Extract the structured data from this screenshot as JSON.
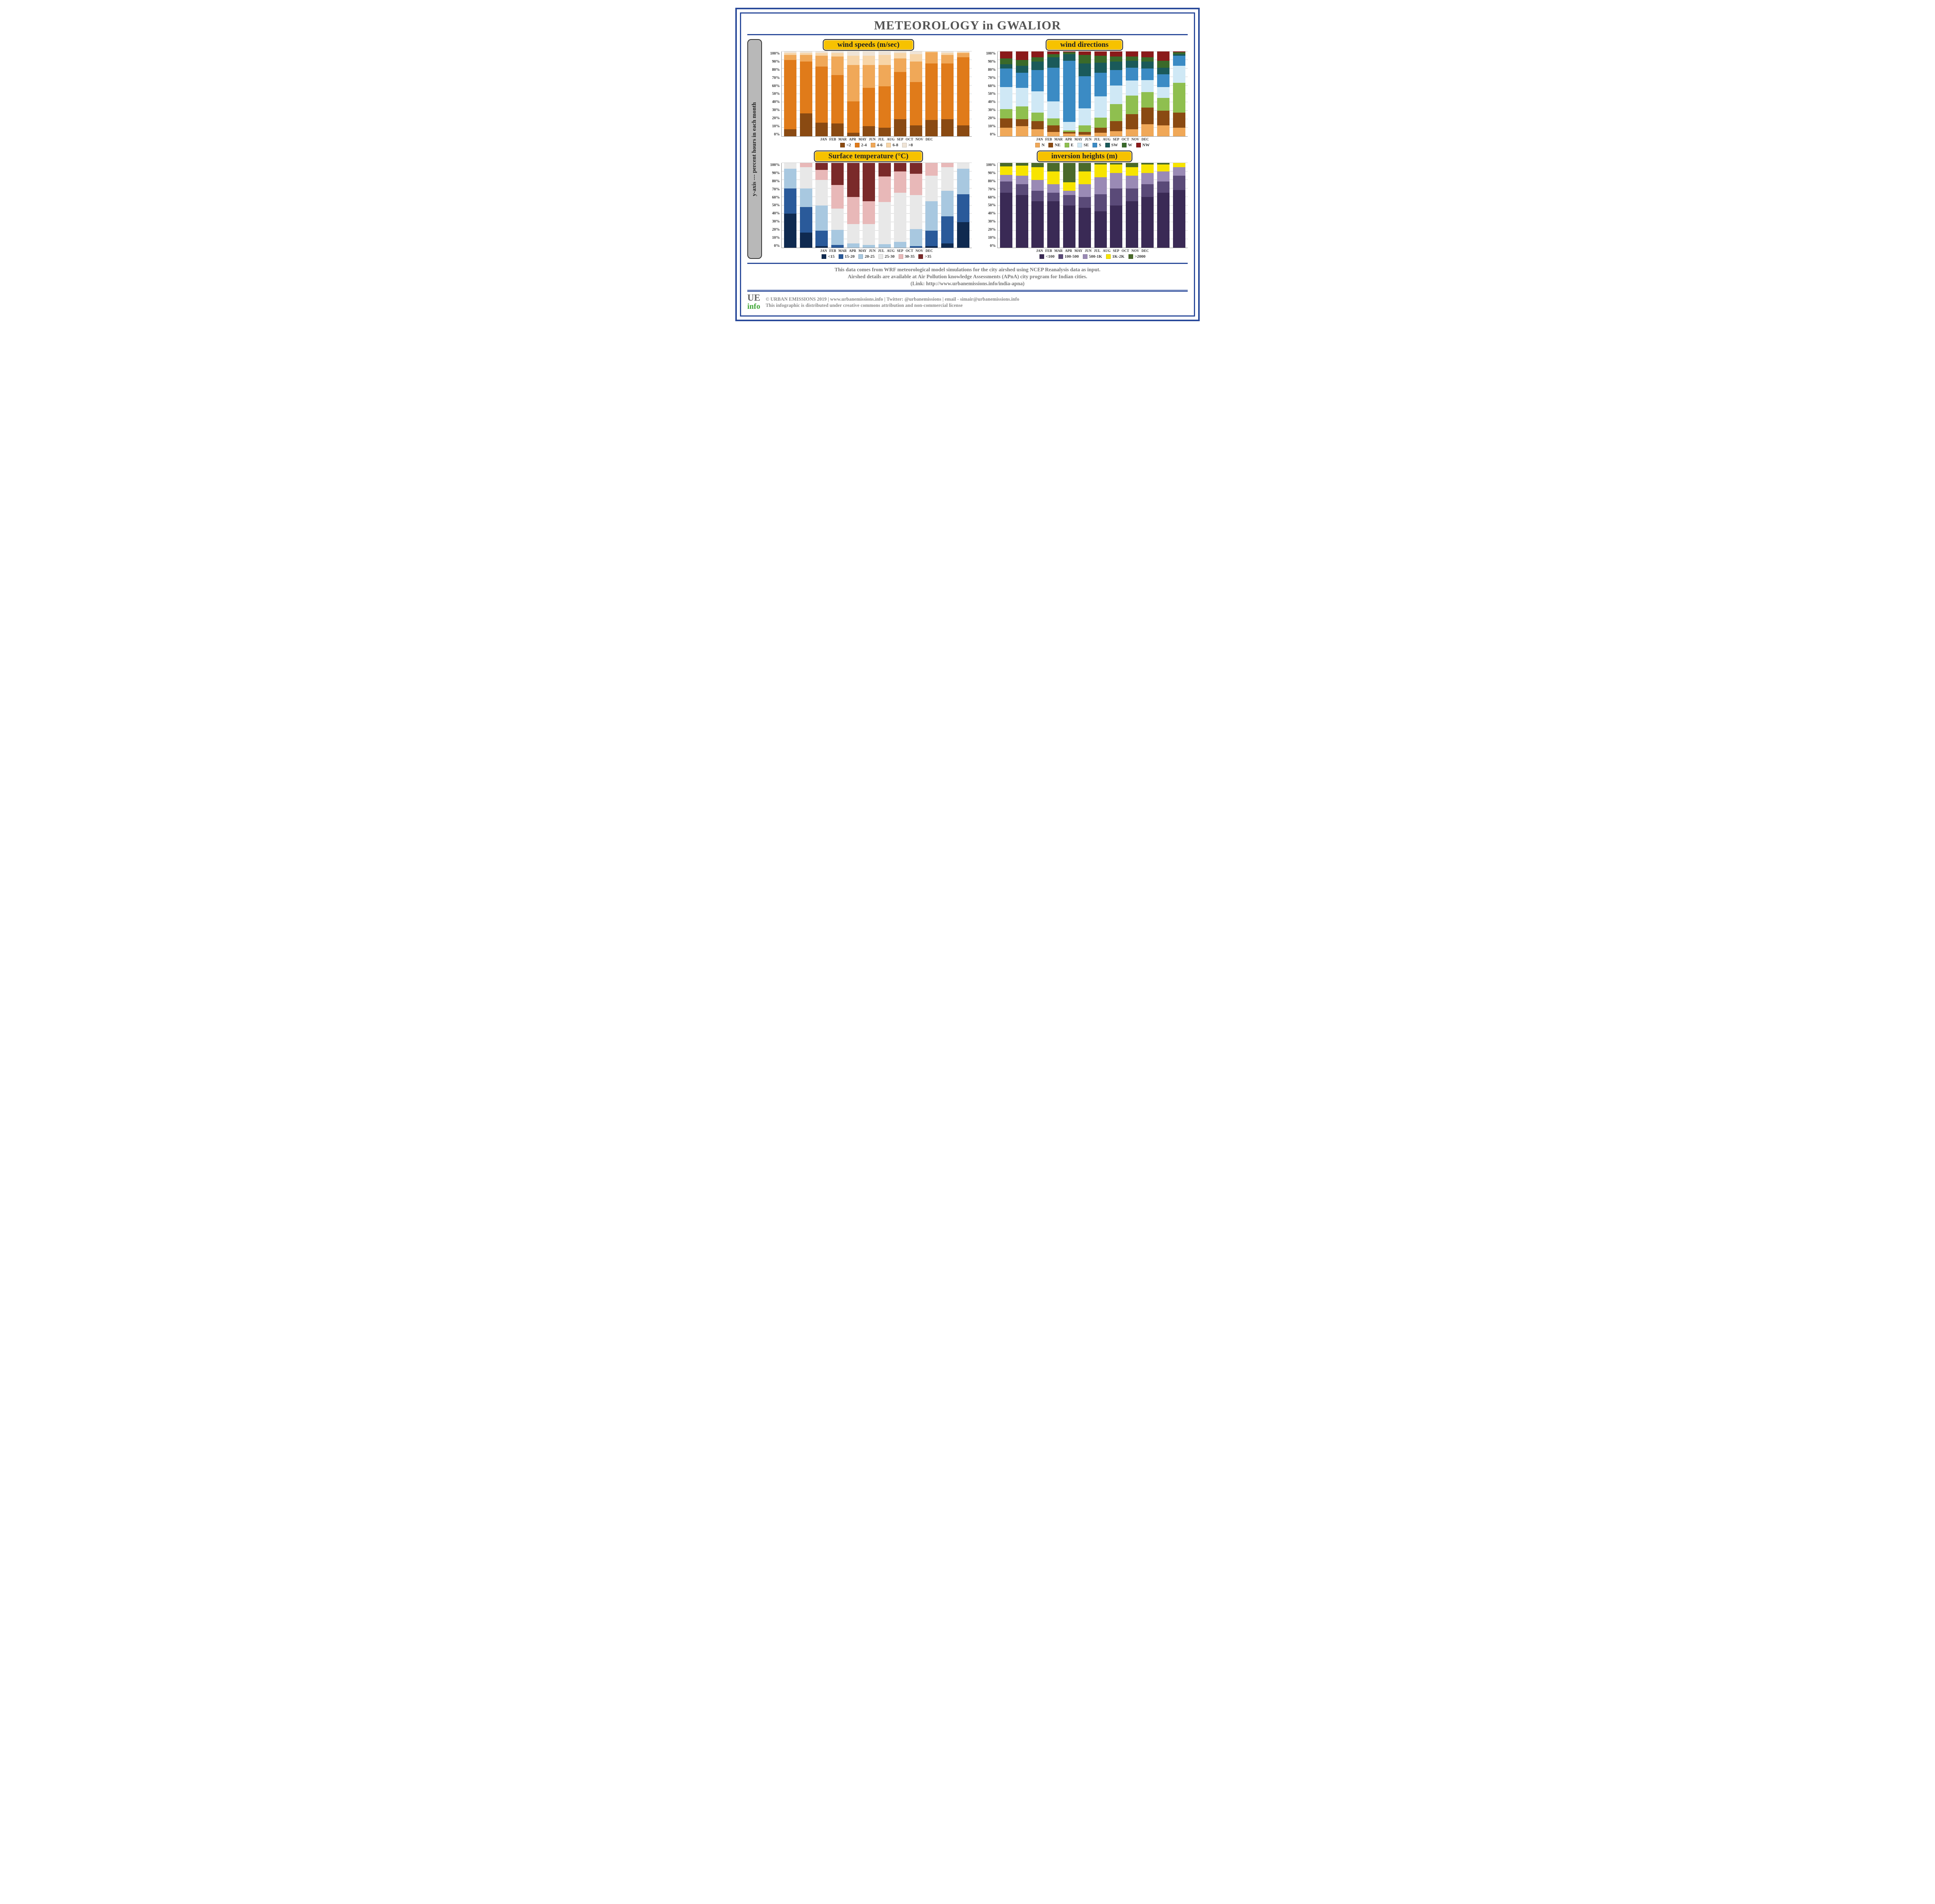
{
  "title": "METEOROLOGY in GWALIOR",
  "yaxis_label": "y-axis --- percent hours in each month",
  "months": [
    "JAN",
    "FEB",
    "MAR",
    "APR",
    "MAY",
    "JUN",
    "JUL",
    "AUG",
    "SEP",
    "OCT",
    "NOV",
    "DEC"
  ],
  "yticks": [
    "100%",
    "90%",
    "80%",
    "70%",
    "60%",
    "50%",
    "40%",
    "30%",
    "20%",
    "10%",
    "0%"
  ],
  "grid_percents": [
    10,
    20,
    30,
    40,
    50,
    60,
    70,
    80,
    90,
    100
  ],
  "colors": {
    "frame": "#2a4a9a",
    "pill_bg": "#f7c200",
    "title_text": "#555555",
    "grid": "#d0d0d0"
  },
  "charts": {
    "wind_speed": {
      "title": "wind speeds (m/sec)",
      "legend": [
        "<2",
        "2-4",
        "4-6",
        "6-8",
        ">8"
      ],
      "palette": [
        "#8a4a12",
        "#e07b1a",
        "#f0a858",
        "#f7d5a8",
        "#efe4d6"
      ],
      "data": [
        [
          8,
          82,
          6,
          2,
          2
        ],
        [
          27,
          61,
          8,
          2,
          2
        ],
        [
          16,
          66,
          13,
          3,
          2
        ],
        [
          15,
          57,
          22,
          4,
          2
        ],
        [
          4,
          37,
          43,
          11,
          5
        ],
        [
          12,
          45,
          27,
          11,
          5
        ],
        [
          10,
          49,
          25,
          12,
          4
        ],
        [
          20,
          56,
          16,
          6,
          2
        ],
        [
          13,
          51,
          24,
          9,
          3
        ],
        [
          19,
          67,
          13,
          1,
          0
        ],
        [
          20,
          66,
          10,
          2,
          2
        ],
        [
          13,
          80,
          5,
          1,
          1
        ]
      ]
    },
    "wind_dir": {
      "title": "wind directions",
      "legend": [
        "N",
        "NE",
        "E",
        "SE",
        "S",
        "SW",
        "W",
        "NW"
      ],
      "palette": [
        "#f0a858",
        "#8a4a12",
        "#8fbf4f",
        "#cfe8f5",
        "#3b8bc4",
        "#1a5a5a",
        "#3a6a2a",
        "#8a1a1a"
      ],
      "data": [
        [
          10,
          11,
          11,
          26,
          22,
          5,
          7,
          8
        ],
        [
          12,
          8,
          15,
          22,
          18,
          8,
          7,
          10
        ],
        [
          8,
          10,
          10,
          25,
          25,
          10,
          5,
          7
        ],
        [
          5,
          8,
          8,
          20,
          40,
          12,
          4,
          3
        ],
        [
          3,
          2,
          2,
          10,
          72,
          8,
          2,
          1
        ],
        [
          2,
          3,
          8,
          20,
          38,
          15,
          10,
          4
        ],
        [
          4,
          6,
          12,
          25,
          28,
          12,
          8,
          5
        ],
        [
          6,
          12,
          20,
          22,
          18,
          10,
          6,
          6
        ],
        [
          8,
          18,
          22,
          18,
          15,
          8,
          5,
          6
        ],
        [
          14,
          20,
          18,
          14,
          14,
          8,
          5,
          7
        ],
        [
          13,
          17,
          15,
          13,
          15,
          8,
          8,
          11
        ],
        [
          10,
          18,
          35,
          20,
          12,
          2,
          2,
          1
        ]
      ]
    },
    "temp": {
      "title": "Surface temperature (°C)",
      "legend": [
        "<15",
        "15-20",
        "20-25",
        "25-30",
        "30-35",
        ">35"
      ],
      "palette": [
        "#0f2a50",
        "#2a5a9a",
        "#a8c8e0",
        "#e8e8e8",
        "#e8b8b8",
        "#7a2a2a"
      ],
      "data": [
        [
          40,
          30,
          23,
          7,
          0,
          0
        ],
        [
          18,
          30,
          22,
          25,
          5,
          0
        ],
        [
          2,
          18,
          30,
          30,
          12,
          8
        ],
        [
          0,
          3,
          18,
          25,
          28,
          26
        ],
        [
          0,
          0,
          5,
          23,
          32,
          40
        ],
        [
          0,
          0,
          3,
          25,
          27,
          45
        ],
        [
          0,
          0,
          4,
          50,
          30,
          16
        ],
        [
          0,
          0,
          7,
          58,
          25,
          10
        ],
        [
          0,
          2,
          20,
          40,
          25,
          13
        ],
        [
          2,
          18,
          35,
          30,
          15,
          0
        ],
        [
          5,
          32,
          30,
          28,
          5,
          0
        ],
        [
          30,
          33,
          30,
          7,
          0,
          0
        ]
      ]
    },
    "inversion": {
      "title": "inversion heights (m)",
      "legend": [
        "<100",
        "100-500",
        "500-1K",
        "1K-2K",
        ">2000"
      ],
      "palette": [
        "#3a2a55",
        "#5a4a78",
        "#9a8ab5",
        "#f7e400",
        "#4a6a2a"
      ],
      "data": [
        [
          65,
          13,
          8,
          10,
          4
        ],
        [
          62,
          13,
          10,
          12,
          3
        ],
        [
          55,
          12,
          13,
          15,
          5
        ],
        [
          55,
          10,
          10,
          15,
          10
        ],
        [
          50,
          12,
          5,
          10,
          23
        ],
        [
          47,
          13,
          15,
          15,
          10
        ],
        [
          43,
          20,
          20,
          15,
          2
        ],
        [
          50,
          20,
          18,
          10,
          2
        ],
        [
          55,
          15,
          15,
          10,
          5
        ],
        [
          60,
          15,
          13,
          10,
          2
        ],
        [
          65,
          13,
          12,
          8,
          2
        ],
        [
          68,
          17,
          10,
          5,
          0
        ]
      ]
    }
  },
  "footer1_line1": "This data comes from WRF meteorological model simulations for the city airshed using NCEP Reanalysis data as input.",
  "footer1_line2": "Airshed details are available at Air Pollution knowledge Assessments (APnA) city program for Indian cities.",
  "footer1_line3": "(Link:  http://www.urbanemissions.info/india-apna)",
  "logo_ue": "UE",
  "logo_info": "info",
  "copyright_line1": "© URBAN EMISSIONS 2019 | www.urbanemissions.info | Twitter: @urbanemissions | email - simair@urbanemissions.info",
  "copyright_line2": "This infographic is distributed under creative commons attribution and non-commercial license"
}
